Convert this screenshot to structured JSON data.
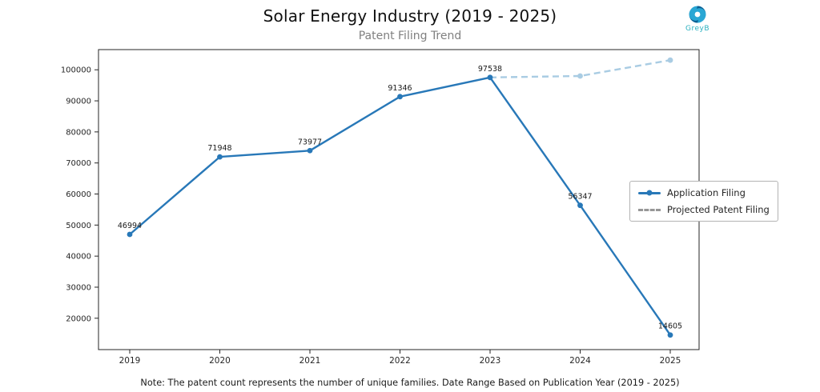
{
  "header": {
    "title": "Solar Energy Industry (2019 - 2025)",
    "subtitle": "Patent Filing Trend"
  },
  "logo": {
    "text": "GreyB"
  },
  "legend": {
    "items": [
      {
        "label": "Application Filing",
        "style": "solid"
      },
      {
        "label": "Projected Patent Filing",
        "style": "dashed"
      }
    ]
  },
  "note": "Note: The patent count represents the number of unique families. Date Range Based on Publication Year (2019 - 2025)",
  "chart_data": {
    "type": "line",
    "title": "Solar Energy Industry (2019 - 2025)",
    "subtitle": "Patent Filing Trend",
    "categories": [
      "2019",
      "2020",
      "2021",
      "2022",
      "2023",
      "2024",
      "2025"
    ],
    "series": [
      {
        "name": "Application Filing",
        "values": [
          46994,
          71948,
          73977,
          91346,
          97538,
          56347,
          14605
        ],
        "color": "#2878b8",
        "style": "solid",
        "markers": true,
        "labels": true
      },
      {
        "name": "Projected Patent Filing",
        "values": [
          null,
          null,
          null,
          null,
          97538,
          98000,
          103100
        ],
        "color": "#a9cce3",
        "style": "dashed",
        "markers": true,
        "labels": false
      }
    ],
    "ylim": [
      9900,
      106500
    ],
    "yticks": [
      20000,
      30000,
      40000,
      50000,
      60000,
      70000,
      80000,
      90000,
      100000
    ],
    "grid": false,
    "legend_position": "center right"
  }
}
